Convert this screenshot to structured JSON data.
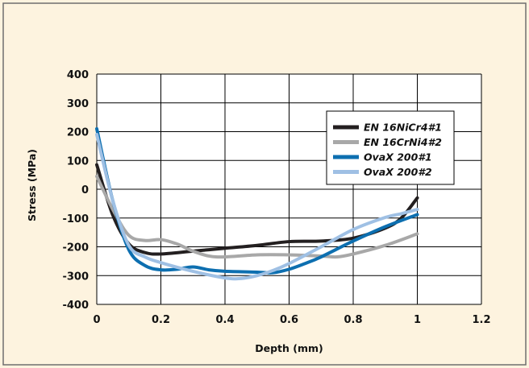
{
  "chart_data": {
    "type": "line",
    "xlabel": "Depth (mm)",
    "ylabel": "Stress (MPa)",
    "xlim": [
      0,
      1.2
    ],
    "ylim": [
      -400,
      400
    ],
    "xticks": [
      0,
      0.2,
      0.4,
      0.6,
      0.8,
      1,
      1.2
    ],
    "xtick_labels": [
      "0",
      "0.2",
      "0.4",
      "0.6",
      "0.8",
      "1",
      "1.2"
    ],
    "yticks": [
      400,
      300,
      200,
      100,
      0,
      -100,
      -200,
      -300,
      -400
    ],
    "ytick_labels": [
      "400",
      "300",
      "200",
      "100",
      "0",
      "-100",
      "-200",
      "-300",
      "-400"
    ],
    "grid": true,
    "legend_position": "right",
    "series": [
      {
        "name": "EN 16NiCr4#1",
        "color": "#231f20",
        "points": [
          [
            0,
            85
          ],
          [
            0.05,
            -90
          ],
          [
            0.1,
            -190
          ],
          [
            0.15,
            -220
          ],
          [
            0.2,
            -225
          ],
          [
            0.3,
            -215
          ],
          [
            0.4,
            -205
          ],
          [
            0.5,
            -195
          ],
          [
            0.6,
            -182
          ],
          [
            0.7,
            -180
          ],
          [
            0.8,
            -170
          ],
          [
            0.9,
            -135
          ],
          [
            0.95,
            -100
          ],
          [
            1,
            -30
          ]
        ]
      },
      {
        "name": "EN 16CrNi4#2",
        "color": "#a8a8a8",
        "points": [
          [
            0,
            45
          ],
          [
            0.05,
            -70
          ],
          [
            0.1,
            -160
          ],
          [
            0.15,
            -178
          ],
          [
            0.2,
            -175
          ],
          [
            0.25,
            -190
          ],
          [
            0.3,
            -215
          ],
          [
            0.35,
            -232
          ],
          [
            0.4,
            -235
          ],
          [
            0.5,
            -228
          ],
          [
            0.6,
            -228
          ],
          [
            0.7,
            -232
          ],
          [
            0.75,
            -235
          ],
          [
            0.8,
            -225
          ],
          [
            0.9,
            -195
          ],
          [
            1,
            -155
          ]
        ]
      },
      {
        "name": "OvaX 200#1",
        "color": "#0d6fb0",
        "points": [
          [
            0,
            210
          ],
          [
            0.05,
            -40
          ],
          [
            0.1,
            -210
          ],
          [
            0.15,
            -265
          ],
          [
            0.2,
            -280
          ],
          [
            0.25,
            -278
          ],
          [
            0.3,
            -270
          ],
          [
            0.35,
            -280
          ],
          [
            0.4,
            -285
          ],
          [
            0.5,
            -288
          ],
          [
            0.55,
            -290
          ],
          [
            0.6,
            -278
          ],
          [
            0.65,
            -258
          ],
          [
            0.7,
            -235
          ],
          [
            0.8,
            -180
          ],
          [
            0.9,
            -130
          ],
          [
            1,
            -88
          ]
        ]
      },
      {
        "name": "OvaX 200#2",
        "color": "#9fc0e4",
        "points": [
          [
            0,
            190
          ],
          [
            0.05,
            -40
          ],
          [
            0.1,
            -195
          ],
          [
            0.15,
            -235
          ],
          [
            0.2,
            -255
          ],
          [
            0.3,
            -285
          ],
          [
            0.4,
            -308
          ],
          [
            0.45,
            -310
          ],
          [
            0.5,
            -300
          ],
          [
            0.55,
            -282
          ],
          [
            0.6,
            -258
          ],
          [
            0.7,
            -200
          ],
          [
            0.8,
            -140
          ],
          [
            0.9,
            -98
          ],
          [
            0.95,
            -85
          ],
          [
            1,
            -70
          ]
        ]
      }
    ]
  }
}
